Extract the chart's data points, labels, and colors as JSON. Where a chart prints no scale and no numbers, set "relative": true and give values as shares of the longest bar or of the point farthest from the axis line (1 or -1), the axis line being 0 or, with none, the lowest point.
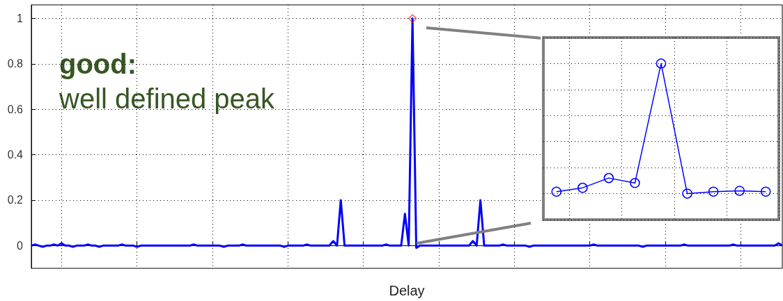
{
  "chart_data": [
    {
      "type": "line",
      "xlabel": "Delay",
      "annotations": [
        "good:",
        "well defined peak"
      ],
      "categories": [
        null,
        null,
        null,
        null,
        null,
        null,
        null,
        null,
        null,
        null,
        null,
        null,
        null,
        null,
        null,
        null,
        null,
        null,
        null,
        null,
        null,
        null,
        null,
        null,
        null,
        null,
        null,
        null,
        null,
        null,
        null,
        null,
        null,
        null,
        null,
        null,
        null,
        null,
        null,
        null,
        null,
        null,
        null,
        null,
        null,
        null,
        null,
        null,
        null,
        null,
        null,
        null,
        null,
        null,
        null,
        null,
        null,
        null,
        null,
        null,
        null,
        null,
        null,
        null,
        null,
        null,
        null,
        null,
        null,
        null,
        null,
        null,
        null,
        null,
        null,
        null,
        null,
        null,
        null,
        null,
        null,
        null,
        null,
        null,
        null,
        null,
        null,
        null,
        null,
        null,
        null,
        null,
        null,
        null,
        null,
        null,
        null,
        null,
        null,
        null,
        null,
        null,
        null,
        null,
        null,
        null,
        null,
        null,
        null,
        null,
        null,
        null,
        null,
        null,
        null,
        null,
        null,
        null,
        null,
        null,
        null,
        null,
        null,
        null,
        null,
        null,
        null,
        null,
        null,
        null,
        null,
        null,
        null,
        null,
        null,
        null,
        null,
        null,
        null,
        null,
        null,
        null,
        null,
        null,
        null,
        null,
        null,
        null,
        null,
        null,
        null,
        null,
        null,
        null,
        null,
        null,
        null,
        null,
        null,
        null,
        null,
        null,
        null,
        null,
        null,
        null,
        null,
        null,
        null,
        null,
        null,
        null,
        null,
        null,
        null,
        null,
        null,
        null,
        null,
        null,
        null,
        null,
        null,
        null,
        null,
        null,
        null,
        null,
        null,
        null,
        null,
        null,
        null,
        null,
        null,
        null,
        null,
        null,
        null,
        null
      ],
      "series": [
        {
          "color": "#0000ff",
          "marker": "none",
          "values": [
            0,
            0.005,
            0,
            -0.005,
            0,
            0,
            0.005,
            0,
            0.01,
            0,
            0,
            -0.005,
            0,
            0,
            0,
            0.005,
            0,
            0,
            -0.005,
            0,
            0,
            0,
            0,
            0,
            0.005,
            0,
            0,
            0,
            -0.005,
            0,
            0,
            0,
            0,
            0,
            0,
            0,
            0,
            0,
            0,
            0,
            0,
            0,
            0,
            0.005,
            0,
            0,
            0,
            0,
            0,
            0,
            0,
            -0.005,
            0,
            0,
            0,
            0,
            0.005,
            0,
            0,
            0,
            0,
            0,
            0,
            0,
            0,
            0,
            0,
            -0.005,
            0,
            0,
            0,
            0,
            0,
            0.005,
            0,
            0,
            0,
            0,
            0,
            0,
            0.02,
            0,
            0.2,
            0,
            0,
            0,
            0,
            0,
            0,
            0,
            0,
            0,
            0,
            0,
            0.005,
            0,
            0,
            0,
            0,
            0.14,
            0,
            1,
            -0.01,
            0,
            0,
            0,
            0,
            0,
            0,
            0,
            0,
            0,
            0,
            0,
            0,
            0,
            0,
            0.02,
            0,
            0.2,
            0,
            0,
            0,
            0,
            0,
            0.005,
            0,
            0,
            0,
            0,
            0,
            0,
            -0.005,
            0,
            0,
            0,
            0,
            0,
            0,
            0,
            0,
            0,
            0,
            0,
            0,
            0,
            0,
            0,
            0,
            0.005,
            0,
            0,
            0,
            0,
            0,
            0,
            0,
            0,
            0,
            0,
            0,
            0,
            -0.005,
            0,
            0,
            0,
            0,
            0,
            0,
            0,
            0,
            0,
            0,
            0.005,
            0,
            0,
            0,
            0,
            0,
            0,
            0,
            0,
            0,
            0,
            0,
            0,
            0.005,
            0,
            0,
            0,
            0,
            0,
            0,
            0,
            0,
            0,
            0,
            0,
            0.01,
            0
          ]
        },
        {
          "type": "scatter",
          "color": "#ff0000",
          "marker": "diamond",
          "values": [
            null,
            null,
            null,
            null,
            null,
            null,
            null,
            null,
            null,
            null,
            null,
            null,
            null,
            null,
            null,
            null,
            null,
            null,
            null,
            null,
            null,
            null,
            null,
            null,
            null,
            null,
            null,
            null,
            null,
            null,
            null,
            null,
            null,
            null,
            null,
            null,
            null,
            null,
            null,
            null,
            null,
            null,
            null,
            null,
            null,
            null,
            null,
            null,
            null,
            null,
            null,
            null,
            null,
            null,
            null,
            null,
            null,
            null,
            null,
            null,
            null,
            null,
            null,
            null,
            null,
            null,
            null,
            null,
            null,
            null,
            null,
            null,
            null,
            null,
            null,
            null,
            null,
            null,
            null,
            null,
            null,
            null,
            null,
            null,
            null,
            null,
            null,
            null,
            null,
            null,
            null,
            null,
            null,
            null,
            null,
            null,
            null,
            null,
            null,
            null,
            null,
            1,
            null,
            null,
            null,
            null,
            null,
            null,
            null,
            null,
            null,
            null,
            null,
            null,
            null,
            null,
            null,
            null,
            null,
            null,
            null,
            null,
            null,
            null,
            null,
            null,
            null,
            null,
            null,
            null,
            null,
            null,
            null,
            null,
            null,
            null,
            null,
            null,
            null,
            null,
            null,
            null,
            null,
            null,
            null,
            null,
            null,
            null,
            null,
            null,
            null,
            null,
            null,
            null,
            null,
            null,
            null,
            null,
            null,
            null,
            null,
            null,
            null,
            null,
            null,
            null,
            null,
            null,
            null,
            null,
            null,
            null,
            null,
            null,
            null,
            null,
            null,
            null,
            null,
            null,
            null,
            null,
            null,
            null,
            null,
            null,
            null,
            null,
            null,
            null,
            null,
            null,
            null,
            null,
            null,
            null,
            null,
            null,
            null,
            null
          ]
        }
      ],
      "ylim": [
        -0.1,
        1.06
      ],
      "yticks": [
        0,
        0.2,
        0.4,
        0.6,
        0.8,
        1
      ],
      "grid": true,
      "tick_labels": "y"
    },
    {
      "type": "line",
      "relative": true,
      "grid": true,
      "tick_labels": false,
      "categories": [
        null,
        null,
        null,
        null,
        null,
        null,
        null,
        null,
        null
      ],
      "series": [
        {
          "color": "#0000ff",
          "marker": "circle",
          "values": [
            0.015,
            0.045,
            0.12,
            0.082,
            1,
            0,
            0.015,
            0.022,
            0.015
          ]
        }
      ]
    }
  ]
}
